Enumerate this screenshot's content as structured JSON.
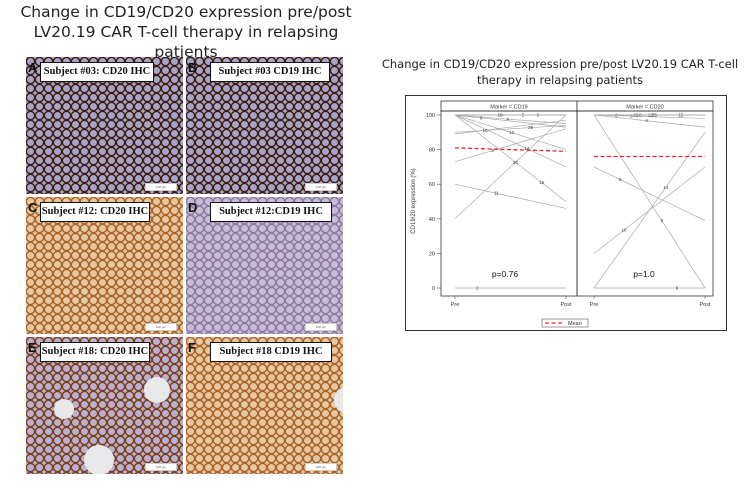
{
  "figure": {
    "title_line1": "Change in CD19/CD20 expression pre/post",
    "title_line2": "LV20.19 CAR T-cell therapy in relapsing patients"
  },
  "ihc_panels": [
    {
      "letter": "A",
      "label": "Subject #03: CD20 IHC",
      "scale": "100 µm",
      "tint": "dark"
    },
    {
      "letter": "B",
      "label": "Subject #03 CD19 IHC",
      "scale": "100 µm",
      "tint": "dark"
    },
    {
      "letter": "C",
      "label": "Subject #12: CD20 IHC",
      "scale": "100 µm",
      "tint": "light"
    },
    {
      "letter": "D",
      "label": "Subject #12:CD19 IHC",
      "scale": "100 µm",
      "tint": "purple"
    },
    {
      "letter": "E",
      "label": "Subject #18: CD20 IHC",
      "scale": "100 µm",
      "tint": "medium"
    },
    {
      "letter": "F",
      "label": "Subject #18 CD19 IHC",
      "scale": "100 µm",
      "tint": "light"
    }
  ],
  "chart_data": {
    "type": "line",
    "title": "Change in CD19/CD20 expression pre/post LV20.19 CAR T-cell therapy in relapsing patients",
    "ylabel": "CD19/20 expression (%)",
    "xlabel": "",
    "categories": [
      "Pre",
      "Post"
    ],
    "yticks": [
      0,
      20,
      40,
      60,
      80,
      100
    ],
    "ylim": [
      0,
      100
    ],
    "legend": {
      "position": "bottom",
      "entries": [
        {
          "label": "Mean",
          "style": "dashed",
          "color": "#e8262b"
        }
      ]
    },
    "line_color": "#a9a9a9",
    "mean_color": "#e8262b",
    "panels": [
      {
        "header": "Marker = CD19",
        "p_value": "p=0.76",
        "mean": {
          "pre": 81,
          "post": 79
        },
        "series": [
          {
            "name": "2",
            "values": [
              0,
              0
            ]
          },
          {
            "name": "3",
            "values": [
              73,
              92
            ]
          },
          {
            "name": "4",
            "values": [
              100,
              95
            ]
          },
          {
            "name": "5",
            "values": [
              100,
              100
            ]
          },
          {
            "name": "6",
            "values": [
              100,
              100
            ]
          },
          {
            "name": "9",
            "values": [
              100,
              93
            ]
          },
          {
            "name": "11",
            "values": [
              60,
              46
            ]
          },
          {
            "name": "12",
            "values": [
              100,
              80
            ]
          },
          {
            "name": "14",
            "values": [
              100,
              70
            ]
          },
          {
            "name": "15",
            "values": [
              100,
              50
            ]
          },
          {
            "name": "16",
            "values": [
              89,
              97
            ]
          },
          {
            "name": "18",
            "values": [
              100,
              100
            ]
          },
          {
            "name": "20",
            "values": [
              40,
              100
            ]
          },
          {
            "name": "25",
            "values": [
              90,
              94
            ]
          }
        ]
      },
      {
        "header": "Marker = CD20",
        "p_value": "p=1.0",
        "mean": {
          "pre": 76,
          "post": 76
        },
        "series": [
          {
            "name": "2",
            "values": [
              100,
              100
            ]
          },
          {
            "name": "3",
            "values": [
              100,
              98
            ]
          },
          {
            "name": "4",
            "values": [
              100,
              93
            ]
          },
          {
            "name": "5",
            "values": [
              100,
              0
            ]
          },
          {
            "name": "6",
            "values": [
              0,
              0
            ]
          },
          {
            "name": "9",
            "values": [
              70,
              39
            ]
          },
          {
            "name": "11",
            "values": [
              100,
              100
            ]
          },
          {
            "name": "12",
            "values": [
              100,
              100
            ]
          },
          {
            "name": "14",
            "values": [
              0,
              90
            ]
          },
          {
            "name": "15",
            "values": [
              100,
              100
            ]
          },
          {
            "name": "16",
            "values": [
              20,
              70
            ]
          },
          {
            "name": "18",
            "values": [
              100,
              100
            ]
          },
          {
            "name": "25",
            "values": [
              100,
              100
            ]
          }
        ]
      }
    ]
  }
}
